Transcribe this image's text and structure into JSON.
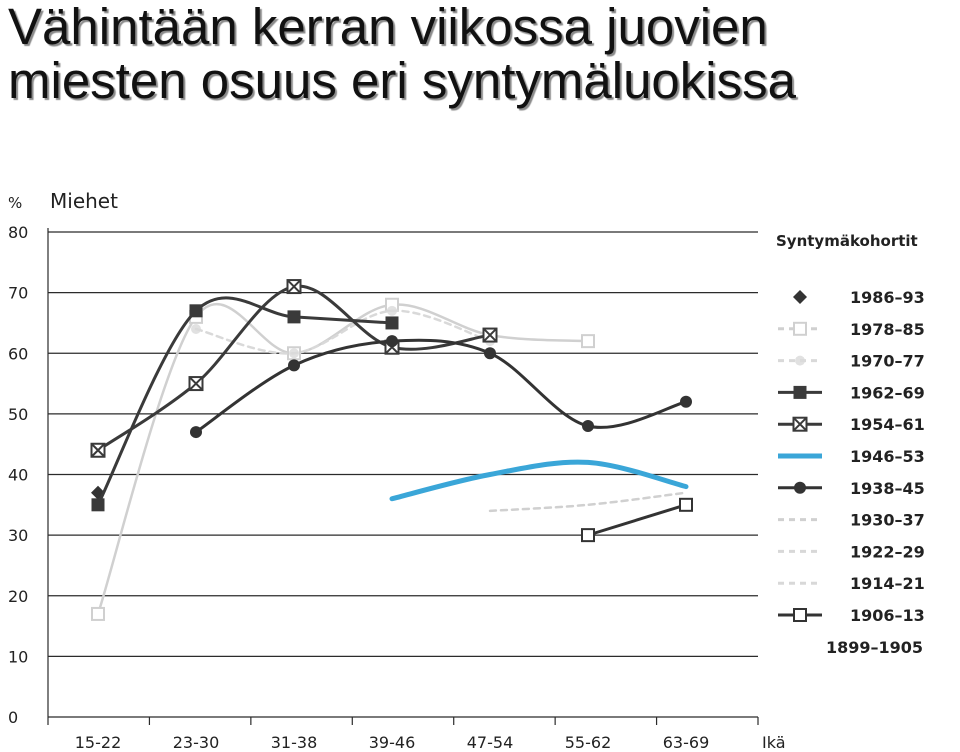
{
  "title_line1": "Vähintään kerran viikossa juovien",
  "title_line2": "miesten osuus eri syntymäluokissa",
  "chart_data": {
    "type": "line",
    "subtitle": "Miehet",
    "ylabel": "%",
    "xlabel": "Ikä",
    "ylim": [
      0,
      80
    ],
    "yticks": [
      0,
      10,
      20,
      30,
      40,
      50,
      60,
      70,
      80
    ],
    "grid": true,
    "legend_title": "Syntymäkohortit",
    "legend_position": "right",
    "categories": [
      "15-22",
      "23-30",
      "31-38",
      "39-46",
      "47-54",
      "55-62",
      "63-69"
    ],
    "series": [
      {
        "name": "1986–93",
        "color": "#333333",
        "marker": "diamond",
        "values": [
          37,
          null,
          null,
          null,
          null,
          null,
          null
        ]
      },
      {
        "name": "1978–85",
        "color": "#d0d0d0",
        "marker": "square-open",
        "values": [
          17,
          66,
          60,
          68,
          63,
          62,
          null
        ]
      },
      {
        "name": "1970–77",
        "color": "#d9d9d9",
        "marker": "circle-light",
        "values": [
          null,
          64,
          60,
          67,
          62,
          null,
          null
        ]
      },
      {
        "name": "1962–69",
        "color": "#3a3a3a",
        "marker": "square",
        "values": [
          35,
          67,
          66,
          65,
          null,
          null,
          null
        ]
      },
      {
        "name": "1954–61",
        "color": "#3a3a3a",
        "marker": "x-square",
        "values": [
          44,
          55,
          71,
          61,
          63,
          null,
          null
        ]
      },
      {
        "name": "1946–53",
        "color": "#3aa6d8",
        "marker": "none",
        "values": [
          null,
          null,
          null,
          36,
          40,
          42,
          38
        ]
      },
      {
        "name": "1938–45",
        "color": "#333333",
        "marker": "circle",
        "values": [
          null,
          47,
          58,
          62,
          60,
          48,
          52
        ]
      },
      {
        "name": "1930–37",
        "color": "#d0d0d0",
        "marker": "none",
        "values": [
          null,
          null,
          null,
          null,
          34,
          35,
          37
        ]
      },
      {
        "name": "1922–29",
        "color": "#d8d8d8",
        "marker": "none",
        "values": [
          null,
          null,
          null,
          null,
          null,
          null,
          null
        ]
      },
      {
        "name": "1914–21",
        "color": "#d8d8d8",
        "marker": "none",
        "values": [
          null,
          null,
          null,
          null,
          null,
          null,
          null
        ]
      },
      {
        "name": "1906–13",
        "color": "#333333",
        "marker": "square-open",
        "values": [
          null,
          null,
          null,
          null,
          null,
          30,
          35
        ]
      },
      {
        "name": "1899–1905",
        "color": "#333333",
        "marker": "none",
        "values": [
          null,
          null,
          null,
          null,
          null,
          null,
          null
        ]
      }
    ]
  }
}
